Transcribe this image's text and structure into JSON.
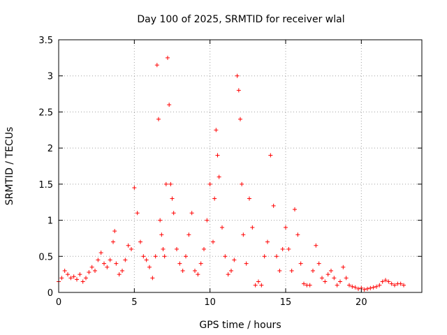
{
  "chart_data": {
    "type": "scatter",
    "title": "Day 100 of 2025, SRMTID for receiver wlal",
    "xlabel": "GPS time / hours",
    "ylabel": "SRMTID / TECUs",
    "xlim": [
      0,
      24
    ],
    "ylim": [
      0,
      3.5
    ],
    "xticks": [
      0,
      5,
      10,
      15,
      20
    ],
    "yticks": [
      0,
      0.5,
      1,
      1.5,
      2,
      2.5,
      3,
      3.5
    ],
    "grid": true,
    "marker": "plus",
    "color": "#ff0000",
    "series": [
      {
        "name": "SRMTID",
        "x": [
          0.0,
          0.2,
          0.4,
          0.6,
          0.8,
          1.0,
          1.2,
          1.4,
          1.6,
          1.8,
          2.0,
          2.2,
          2.4,
          2.6,
          2.8,
          3.0,
          3.2,
          3.4,
          3.6,
          3.7,
          3.8,
          4.0,
          4.2,
          4.4,
          4.6,
          4.8,
          5.0,
          5.2,
          5.4,
          5.6,
          5.8,
          6.0,
          6.2,
          6.4,
          6.5,
          6.6,
          6.7,
          6.8,
          6.9,
          7.0,
          7.1,
          7.2,
          7.3,
          7.4,
          7.5,
          7.6,
          7.8,
          8.0,
          8.2,
          8.4,
          8.6,
          8.8,
          9.0,
          9.2,
          9.4,
          9.6,
          9.8,
          10.0,
          10.2,
          10.3,
          10.4,
          10.5,
          10.6,
          10.8,
          11.0,
          11.2,
          11.4,
          11.6,
          11.8,
          11.9,
          12.0,
          12.1,
          12.2,
          12.4,
          12.6,
          12.8,
          13.0,
          13.2,
          13.4,
          13.6,
          13.8,
          14.0,
          14.2,
          14.4,
          14.6,
          14.8,
          15.0,
          15.2,
          15.4,
          15.6,
          15.8,
          16.0,
          16.2,
          16.4,
          16.6,
          16.8,
          17.0,
          17.2,
          17.4,
          17.6,
          17.8,
          18.0,
          18.2,
          18.4,
          18.6,
          18.8,
          19.0,
          19.2,
          19.4,
          19.6,
          19.8,
          20.0,
          20.2,
          20.4,
          20.6,
          20.8,
          21.0,
          21.2,
          21.4,
          21.6,
          21.8,
          22.0,
          22.2,
          22.4,
          22.6,
          22.8
        ],
        "y": [
          0.15,
          0.2,
          0.3,
          0.25,
          0.2,
          0.22,
          0.18,
          0.25,
          0.15,
          0.2,
          0.28,
          0.35,
          0.3,
          0.45,
          0.55,
          0.4,
          0.35,
          0.45,
          0.7,
          0.85,
          0.4,
          0.25,
          0.3,
          0.45,
          0.65,
          0.6,
          1.45,
          1.1,
          0.7,
          0.5,
          0.45,
          0.35,
          0.2,
          0.5,
          3.15,
          2.4,
          1.0,
          0.8,
          0.6,
          0.5,
          1.5,
          3.25,
          2.6,
          1.5,
          1.3,
          1.1,
          0.6,
          0.4,
          0.3,
          0.5,
          0.8,
          1.1,
          0.3,
          0.25,
          0.4,
          0.6,
          1.0,
          1.5,
          0.7,
          1.3,
          2.25,
          1.9,
          1.6,
          0.9,
          0.5,
          0.25,
          0.3,
          0.45,
          3.0,
          2.8,
          2.4,
          1.5,
          0.8,
          0.4,
          1.3,
          0.9,
          0.1,
          0.15,
          0.1,
          0.5,
          0.7,
          1.9,
          1.2,
          0.5,
          0.3,
          0.6,
          0.9,
          0.6,
          0.3,
          1.15,
          0.8,
          0.4,
          0.12,
          0.1,
          0.1,
          0.3,
          0.65,
          0.4,
          0.2,
          0.15,
          0.25,
          0.3,
          0.2,
          0.1,
          0.15,
          0.35,
          0.2,
          0.1,
          0.08,
          0.07,
          0.05,
          0.06,
          0.04,
          0.05,
          0.06,
          0.07,
          0.08,
          0.1,
          0.15,
          0.17,
          0.15,
          0.12,
          0.1,
          0.12,
          0.12,
          0.1
        ]
      }
    ]
  }
}
